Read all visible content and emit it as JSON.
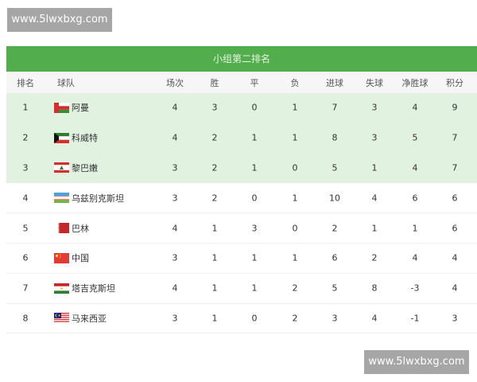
{
  "watermark": "www.5lwxbxg.com",
  "title": "小组第二排名",
  "headers": [
    "排名",
    "球队",
    "场次",
    "胜",
    "平",
    "负",
    "进球",
    "失球",
    "净胜球",
    "积分"
  ],
  "colors": {
    "header_green": "#52ad4c",
    "highlight_row": "#e1f2e0"
  },
  "rows": [
    {
      "rank": "1",
      "team": "阿曼",
      "flag": "oman-flag",
      "played": "4",
      "w": "3",
      "d": "0",
      "l": "1",
      "gf": "7",
      "ga": "3",
      "gd": "4",
      "pts": "9",
      "highlight": true
    },
    {
      "rank": "2",
      "team": "科威特",
      "flag": "kuwait-flag",
      "played": "4",
      "w": "2",
      "d": "1",
      "l": "1",
      "gf": "8",
      "ga": "3",
      "gd": "5",
      "pts": "7",
      "highlight": true
    },
    {
      "rank": "3",
      "team": "黎巴嫩",
      "flag": "lebanon-flag",
      "played": "3",
      "w": "2",
      "d": "1",
      "l": "0",
      "gf": "5",
      "ga": "1",
      "gd": "4",
      "pts": "7",
      "highlight": true
    },
    {
      "rank": "4",
      "team": "乌兹别克斯坦",
      "flag": "uzbekistan-flag",
      "played": "3",
      "w": "2",
      "d": "0",
      "l": "1",
      "gf": "10",
      "ga": "4",
      "gd": "6",
      "pts": "6",
      "highlight": false
    },
    {
      "rank": "5",
      "team": "巴林",
      "flag": "bahrain-flag",
      "played": "4",
      "w": "1",
      "d": "3",
      "l": "0",
      "gf": "2",
      "ga": "1",
      "gd": "1",
      "pts": "6",
      "highlight": false
    },
    {
      "rank": "6",
      "team": "中国",
      "flag": "china-flag",
      "played": "3",
      "w": "1",
      "d": "1",
      "l": "1",
      "gf": "6",
      "ga": "2",
      "gd": "4",
      "pts": "4",
      "highlight": false
    },
    {
      "rank": "7",
      "team": "塔吉克斯坦",
      "flag": "tajikistan-flag",
      "played": "4",
      "w": "1",
      "d": "1",
      "l": "2",
      "gf": "5",
      "ga": "8",
      "gd": "-3",
      "pts": "4",
      "highlight": false
    },
    {
      "rank": "8",
      "team": "马来西亚",
      "flag": "malaysia-flag",
      "played": "3",
      "w": "1",
      "d": "0",
      "l": "2",
      "gf": "3",
      "ga": "4",
      "gd": "-1",
      "pts": "3",
      "highlight": false
    }
  ]
}
